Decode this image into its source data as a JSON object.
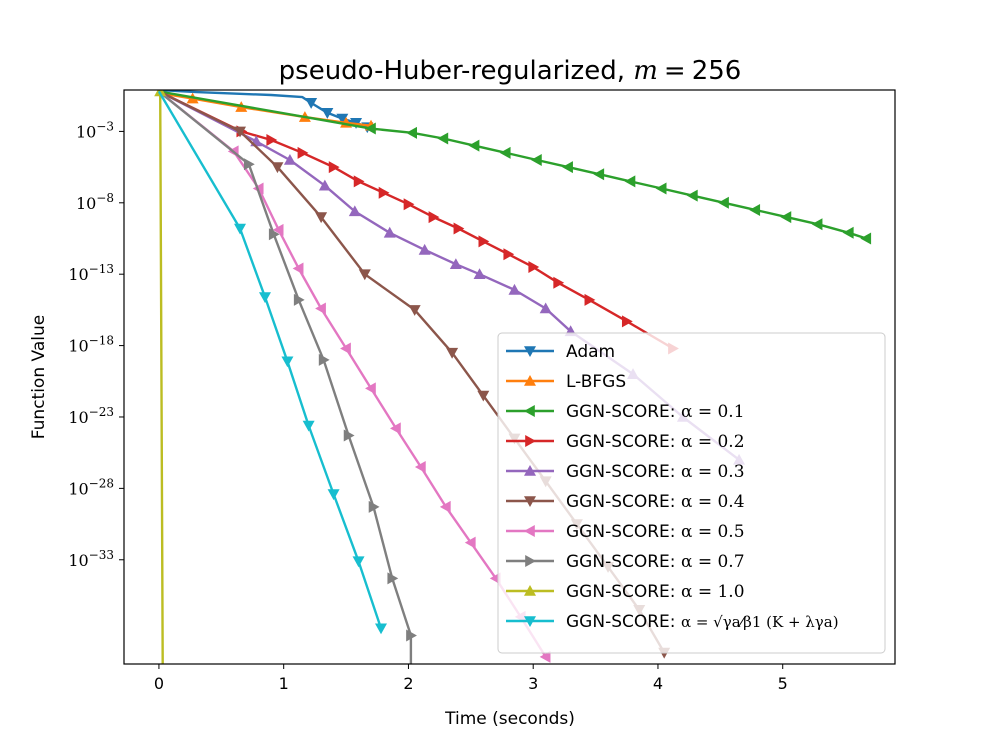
{
  "chart_data": {
    "type": "line",
    "title": "pseudo-Huber-regularized, m = 256",
    "title_parts": {
      "text": "pseudo-Huber-regularized, ",
      "m": "m",
      "eq": "=",
      "num": "256"
    },
    "xlabel": "Time (seconds)",
    "ylabel": "Function Value",
    "xlim": [
      -0.28,
      5.9
    ],
    "y_log10_lim": [
      -40.3,
      -0.1
    ],
    "yscale": "log",
    "xticks": [
      0,
      1,
      2,
      3,
      4,
      5
    ],
    "xtick_labels": [
      "0",
      "1",
      "2",
      "3",
      "4",
      "5"
    ],
    "yticks_log10": [
      -3,
      -8,
      -13,
      -18,
      -23,
      -28,
      -33
    ],
    "ytick_labels": [
      "10",
      "10",
      "10",
      "10",
      "10",
      "10",
      "10"
    ],
    "ytick_exponents": [
      "−3",
      "−8",
      "−13",
      "−18",
      "−23",
      "−28",
      "−33"
    ],
    "legend_position": "lower-right",
    "series": [
      {
        "name": "Adam",
        "legend_label": "Adam",
        "color": "#1f77b4",
        "marker": "triangle-down",
        "x": [
          0,
          0.3,
          0.6,
          0.9,
          1.15,
          1.22,
          1.35,
          1.47,
          1.58,
          1.67
        ],
        "y_log10": [
          -0.1,
          -0.25,
          -0.35,
          -0.45,
          -0.6,
          -1.0,
          -1.7,
          -2.1,
          -2.4,
          -2.7
        ],
        "marker_indices": [
          5,
          6,
          7,
          8,
          9
        ]
      },
      {
        "name": "L-BFGS",
        "legend_label": "L-BFGS",
        "color": "#ff7f0e",
        "marker": "triangle-up",
        "x": [
          0,
          0.27,
          0.66,
          1.17,
          1.5,
          1.7
        ],
        "y_log10": [
          -0.3,
          -0.7,
          -1.3,
          -2.0,
          -2.4,
          -2.6
        ],
        "marker_indices": [
          1,
          2,
          3,
          4,
          5
        ]
      },
      {
        "name": "GGN-SCORE α = 0.1",
        "legend_label": "GGN-SCORE: ",
        "legend_math": "α = 0.1",
        "color": "#2ca02c",
        "marker": "triangle-left",
        "x": [
          0,
          1.7,
          2.03,
          2.28,
          2.53,
          2.78,
          3.03,
          3.28,
          3.53,
          3.78,
          4.03,
          4.28,
          4.53,
          4.78,
          5.03,
          5.28,
          5.53,
          5.67
        ],
        "y_log10": [
          -0.2,
          -2.8,
          -3.1,
          -3.5,
          -4.0,
          -4.5,
          -5.0,
          -5.5,
          -6.0,
          -6.5,
          -7.0,
          -7.5,
          -8.0,
          -8.5,
          -9.0,
          -9.5,
          -10.1,
          -10.5
        ],
        "marker_indices": [
          1,
          2,
          3,
          4,
          5,
          6,
          7,
          8,
          9,
          10,
          11,
          12,
          13,
          14,
          15,
          16,
          17
        ]
      },
      {
        "name": "GGN-SCORE α = 0.2",
        "legend_label": "GGN-SCORE: ",
        "legend_math": "α = 0.2",
        "color": "#d62728",
        "marker": "triangle-right",
        "x": [
          0,
          0.66,
          0.9,
          1.15,
          1.4,
          1.6,
          1.8,
          2.0,
          2.2,
          2.4,
          2.6,
          2.8,
          3.0,
          3.2,
          3.45,
          3.75,
          4.12
        ],
        "y_log10": [
          -0.2,
          -3.0,
          -3.6,
          -4.5,
          -5.5,
          -6.5,
          -7.3,
          -8.1,
          -9.0,
          -9.8,
          -10.7,
          -11.6,
          -12.5,
          -13.6,
          -14.8,
          -16.3,
          -18.2
        ],
        "marker_indices": [
          1,
          2,
          3,
          4,
          5,
          6,
          7,
          8,
          9,
          10,
          11,
          12,
          13,
          14,
          15,
          16
        ]
      },
      {
        "name": "GGN-SCORE α = 0.3",
        "legend_label": "GGN-SCORE: ",
        "legend_math": "α = 0.3",
        "color": "#9467bd",
        "marker": "triangle-up",
        "x": [
          0,
          0.78,
          1.05,
          1.33,
          1.57,
          1.85,
          2.13,
          2.38,
          2.57,
          2.85,
          3.1,
          3.3,
          3.8,
          4.2,
          4.65
        ],
        "y_log10": [
          -0.2,
          -3.7,
          -5.0,
          -6.8,
          -8.6,
          -10.1,
          -11.3,
          -12.3,
          -13.0,
          -14.1,
          -15.4,
          -17.0,
          -20.0,
          -23.0,
          -26.0
        ],
        "marker_indices": [
          1,
          2,
          3,
          4,
          5,
          6,
          7,
          8,
          9,
          10,
          11,
          12,
          13,
          14
        ]
      },
      {
        "name": "GGN-SCORE α = 0.4",
        "legend_label": "GGN-SCORE: ",
        "legend_math": "α = 0.4",
        "color": "#8c564b",
        "marker": "triangle-down",
        "x": [
          0,
          0.65,
          0.95,
          1.3,
          1.65,
          2.05,
          2.35,
          2.6,
          2.85,
          3.1,
          3.35,
          3.6,
          3.85,
          4.05
        ],
        "y_log10": [
          -0.2,
          -3.0,
          -5.5,
          -9.0,
          -13.0,
          -15.5,
          -18.5,
          -21.5,
          -24.5,
          -27.5,
          -30.5,
          -33.5,
          -36.5,
          -39.5
        ],
        "marker_indices": [
          1,
          2,
          3,
          4,
          5,
          6,
          7,
          8,
          9,
          10,
          11,
          12,
          13
        ]
      },
      {
        "name": "GGN-SCORE α = 0.5",
        "legend_label": "GGN-SCORE: ",
        "legend_math": "α = 0.5",
        "color": "#e377c2",
        "marker": "triangle-left",
        "x": [
          0,
          0.6,
          0.8,
          0.96,
          1.12,
          1.3,
          1.5,
          1.7,
          1.9,
          2.1,
          2.3,
          2.5,
          2.7,
          2.9,
          3.1
        ],
        "y_log10": [
          -0.2,
          -4.4,
          -7.0,
          -9.9,
          -12.6,
          -15.4,
          -18.2,
          -21.0,
          -23.8,
          -26.5,
          -29.3,
          -31.8,
          -34.3,
          -37.0,
          -39.8
        ],
        "marker_indices": [
          1,
          2,
          3,
          4,
          5,
          6,
          7,
          8,
          9,
          10,
          11,
          12,
          13,
          14
        ]
      },
      {
        "name": "GGN-SCORE α = 0.7",
        "legend_label": "GGN-SCORE: ",
        "legend_math": "α = 0.7",
        "color": "#7f7f7f",
        "marker": "triangle-right",
        "x": [
          0,
          0.72,
          0.92,
          1.12,
          1.32,
          1.52,
          1.72,
          1.87,
          2.02,
          2.02
        ],
        "y_log10": [
          -0.2,
          -5.3,
          -10.2,
          -14.8,
          -19.0,
          -24.3,
          -29.3,
          -34.3,
          -38.3,
          -40.3
        ],
        "marker_indices": [
          1,
          2,
          3,
          4,
          5,
          6,
          7,
          8
        ]
      },
      {
        "name": "GGN-SCORE α = 1.0",
        "legend_label": "GGN-SCORE: ",
        "legend_math": "α = 1.0",
        "color": "#bcbd22",
        "marker": "triangle-up",
        "x": [
          0,
          0.01,
          0.03
        ],
        "y_log10": [
          -0.2,
          -0.2,
          -40.3
        ],
        "marker_indices": [
          1
        ]
      },
      {
        "name": "GGN-SCORE α = √γa/β1 (K + λγa)",
        "legend_label": "GGN-SCORE: ",
        "legend_math": "α = √γa⁄β1 (K + λγa)",
        "color": "#17becf",
        "marker": "triangle-down",
        "x": [
          0,
          0.65,
          0.85,
          1.03,
          1.2,
          1.4,
          1.6,
          1.78
        ],
        "y_log10": [
          -0.2,
          -9.8,
          -14.6,
          -19.1,
          -23.6,
          -28.4,
          -33.1,
          -37.8
        ],
        "marker_indices": [
          1,
          2,
          3,
          4,
          5,
          6,
          7
        ]
      }
    ]
  }
}
